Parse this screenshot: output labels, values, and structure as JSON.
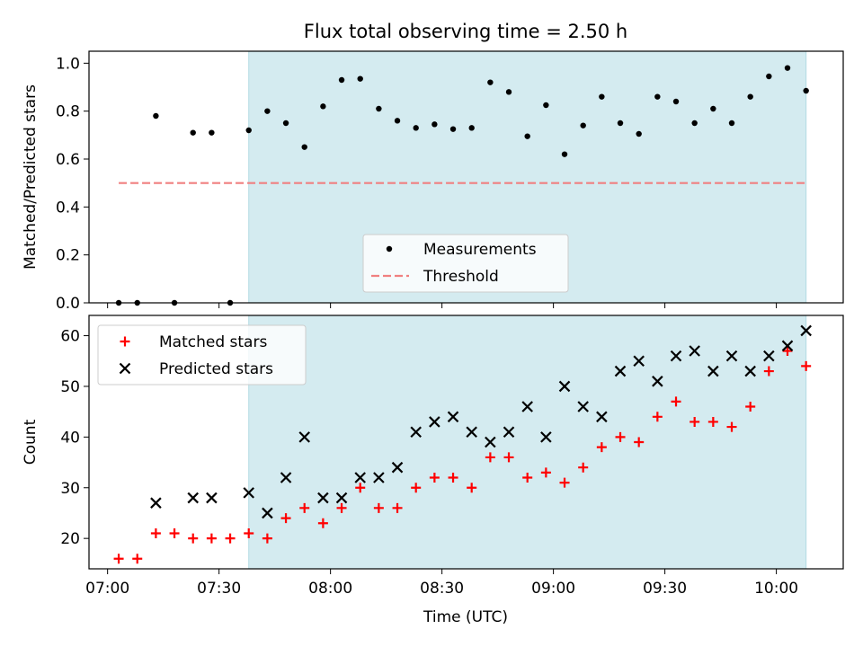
{
  "title": "Flux total observing time = 2.50 h",
  "colors": {
    "shade": "#d4ebf0",
    "shade_edge": "#b3dbe3",
    "threshold": "#f08080",
    "matched": "#ff0000",
    "predicted": "#000000",
    "measurement": "#000000"
  },
  "chart_data": [
    {
      "type": "scatter",
      "panel": "top",
      "ylabel": "Matched/Predicted stars",
      "ylim": [
        0,
        1.05
      ],
      "yticks": [
        0.0,
        0.2,
        0.4,
        0.6,
        0.8,
        1.0
      ],
      "ytick_labels": [
        "0.0",
        "0.2",
        "0.4",
        "0.6",
        "0.8",
        "1.0"
      ],
      "xlim": [
        "06:55",
        "10:18"
      ],
      "observing_window": [
        "07:38",
        "10:08"
      ],
      "legend_position": "lower-center",
      "series": [
        {
          "name": "Measurements",
          "marker": "dot",
          "x": [
            "07:03",
            "07:08",
            "07:13",
            "07:18",
            "07:23",
            "07:28",
            "07:33",
            "07:38",
            "07:43",
            "07:48",
            "07:53",
            "07:58",
            "08:03",
            "08:08",
            "08:13",
            "08:18",
            "08:23",
            "08:28",
            "08:33",
            "08:38",
            "08:43",
            "08:48",
            "08:53",
            "08:58",
            "09:03",
            "09:08",
            "09:13",
            "09:18",
            "09:23",
            "09:28",
            "09:33",
            "09:38",
            "09:43",
            "09:48",
            "09:53",
            "09:58",
            "10:03",
            "10:08"
          ],
          "y": [
            0.0,
            0.0,
            0.78,
            0.0,
            0.71,
            0.71,
            0.0,
            0.72,
            0.8,
            0.75,
            0.65,
            0.82,
            0.93,
            0.935,
            0.81,
            0.76,
            0.73,
            0.745,
            0.725,
            0.73,
            0.92,
            0.88,
            0.695,
            0.825,
            0.62,
            0.74,
            0.86,
            0.75,
            0.705,
            0.86,
            0.84,
            0.75,
            0.81,
            0.75,
            0.86,
            0.945,
            0.98,
            0.885
          ]
        },
        {
          "name": "Threshold",
          "style": "dashed-line",
          "x": [
            "07:03",
            "10:08"
          ],
          "y": [
            0.5,
            0.5
          ]
        }
      ]
    },
    {
      "type": "scatter",
      "panel": "bottom",
      "xlabel": "Time (UTC)",
      "ylabel": "Count",
      "ylim": [
        14,
        64
      ],
      "yticks": [
        20,
        30,
        40,
        50,
        60
      ],
      "ytick_labels": [
        "20",
        "30",
        "40",
        "50",
        "60"
      ],
      "xlim": [
        "06:55",
        "10:18"
      ],
      "xticks": [
        "07:00",
        "07:30",
        "08:00",
        "08:30",
        "09:00",
        "09:30",
        "10:00"
      ],
      "observing_window": [
        "07:38",
        "10:08"
      ],
      "legend_position": "upper-left",
      "series": [
        {
          "name": "Matched stars",
          "marker": "plus",
          "x": [
            "07:03",
            "07:08",
            "07:13",
            "07:18",
            "07:23",
            "07:28",
            "07:33",
            "07:38",
            "07:43",
            "07:48",
            "07:53",
            "07:58",
            "08:03",
            "08:08",
            "08:13",
            "08:18",
            "08:23",
            "08:28",
            "08:33",
            "08:38",
            "08:43",
            "08:48",
            "08:53",
            "08:58",
            "09:03",
            "09:08",
            "09:13",
            "09:18",
            "09:23",
            "09:28",
            "09:33",
            "09:38",
            "09:43",
            "09:48",
            "09:53",
            "09:58",
            "10:03",
            "10:08"
          ],
          "y": [
            16,
            16,
            21,
            21,
            20,
            20,
            20,
            21,
            20,
            24,
            26,
            23,
            26,
            30,
            26,
            26,
            30,
            32,
            32,
            30,
            36,
            36,
            32,
            33,
            31,
            34,
            38,
            40,
            39,
            44,
            47,
            43,
            43,
            42,
            46,
            53,
            57,
            54
          ]
        },
        {
          "name": "Predicted stars",
          "marker": "x",
          "x": [
            "07:13",
            "07:23",
            "07:28",
            "07:38",
            "07:43",
            "07:48",
            "07:53",
            "07:58",
            "08:03",
            "08:08",
            "08:13",
            "08:18",
            "08:23",
            "08:28",
            "08:33",
            "08:38",
            "08:43",
            "08:48",
            "08:53",
            "08:58",
            "09:03",
            "09:08",
            "09:13",
            "09:18",
            "09:23",
            "09:28",
            "09:33",
            "09:38",
            "09:43",
            "09:48",
            "09:53",
            "09:58",
            "10:03",
            "10:08"
          ],
          "y": [
            27,
            28,
            28,
            29,
            25,
            32,
            40,
            28,
            28,
            32,
            32,
            34,
            41,
            43,
            44,
            41,
            39,
            41,
            46,
            40,
            50,
            46,
            44,
            53,
            55,
            51,
            56,
            57,
            53,
            56,
            53,
            56,
            58,
            61
          ]
        }
      ]
    }
  ]
}
